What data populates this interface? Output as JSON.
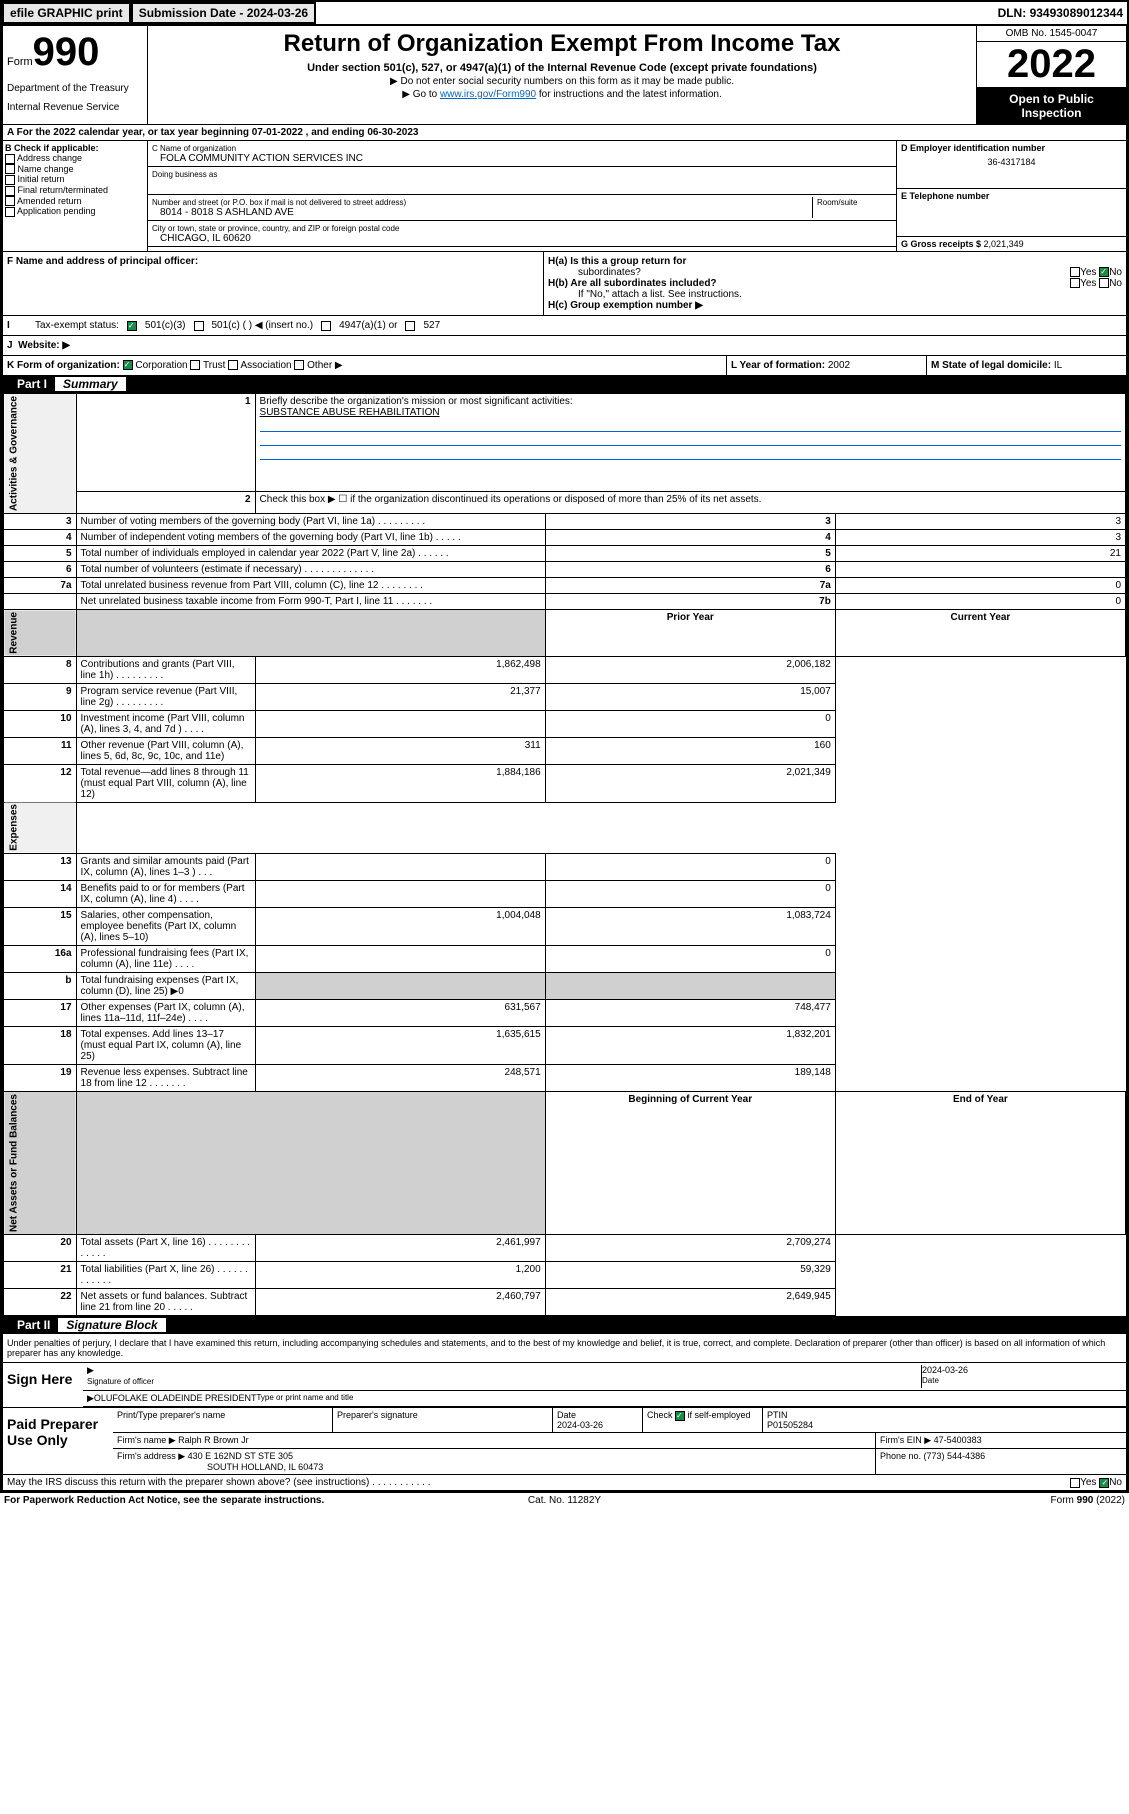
{
  "topbar": {
    "efile": "efile GRAPHIC print",
    "subdate_label": "Submission Date - ",
    "subdate": "2024-03-26",
    "dln_label": "DLN: ",
    "dln": "93493089012344"
  },
  "header": {
    "form_prefix": "Form",
    "form_num": "990",
    "dept": "Department of the Treasury",
    "irs": "Internal Revenue Service",
    "title": "Return of Organization Exempt From Income Tax",
    "subtitle": "Under section 501(c), 527, or 4947(a)(1) of the Internal Revenue Code (except private foundations)",
    "instr1": "▶ Do not enter social security numbers on this form as it may be made public.",
    "instr2_pre": "▶ Go to ",
    "instr2_link": "www.irs.gov/Form990",
    "instr2_post": " for instructions and the latest information.",
    "omb": "OMB No. 1545-0047",
    "year": "2022",
    "open1": "Open to Public",
    "open2": "Inspection"
  },
  "section_a": "A For the 2022 calendar year, or tax year beginning 07-01-2022    , and ending 06-30-2023",
  "b": {
    "label": "B Check if applicable:",
    "opts": [
      "Address change",
      "Name change",
      "Initial return",
      "Final return/terminated",
      "Amended return",
      "Application pending"
    ]
  },
  "c": {
    "name_label": "C Name of organization",
    "name": "FOLA COMMUNITY ACTION SERVICES INC",
    "dba_label": "Doing business as",
    "dba": "",
    "addr_label": "Number and street (or P.O. box if mail is not delivered to street address)",
    "room_label": "Room/suite",
    "addr": "8014 - 8018 S ASHLAND AVE",
    "city_label": "City or town, state or province, country, and ZIP or foreign postal code",
    "city": "CHICAGO, IL  60620"
  },
  "d": {
    "label": "D Employer identification number",
    "val": "36-4317184"
  },
  "e": {
    "label": "E Telephone number",
    "val": ""
  },
  "g": {
    "label": "G Gross receipts $ ",
    "val": "2,021,349"
  },
  "f": {
    "label": "F  Name and address of principal officer:"
  },
  "h": {
    "a_label": "H(a)  Is this a group return for",
    "a_sub": "subordinates?",
    "b_label": "H(b)  Are all subordinates included?",
    "b_note": "If \"No,\" attach a list. See instructions.",
    "c_label": "H(c)  Group exemption number ▶",
    "yes": "Yes",
    "no": "No"
  },
  "i": {
    "label": "Tax-exempt status:",
    "opts": [
      "501(c)(3)",
      "501(c) (  ) ◀ (insert no.)",
      "4947(a)(1) or",
      "527"
    ]
  },
  "j": {
    "label": "Website: ▶"
  },
  "k": {
    "label": "K Form of organization:",
    "opts": [
      "Corporation",
      "Trust",
      "Association",
      "Other ▶"
    ]
  },
  "l": {
    "label": "L Year of formation: ",
    "val": "2002"
  },
  "m": {
    "label": "M State of legal domicile: ",
    "val": "IL"
  },
  "part1": {
    "num": "Part I",
    "title": "Summary"
  },
  "summary": {
    "q1": "Briefly describe the organization's mission or most significant activities:",
    "q1_ans": "SUBSTANCE ABUSE REHABILITATION",
    "q2": "Check this box ▶ ☐  if the organization discontinued its operations or disposed of more than 25% of its net assets.",
    "rows_gov": [
      {
        "n": "3",
        "t": "Number of voting members of the governing body (Part VI, line 1a)  .   .   .   .   .   .   .   .   .",
        "c": "3",
        "v": "3"
      },
      {
        "n": "4",
        "t": "Number of independent voting members of the governing body (Part VI, line 1b)   .   .   .   .   .",
        "c": "4",
        "v": "3"
      },
      {
        "n": "5",
        "t": "Total number of individuals employed in calendar year 2022 (Part V, line 2a)   .   .   .   .   .   .",
        "c": "5",
        "v": "21"
      },
      {
        "n": "6",
        "t": "Total number of volunteers (estimate if necessary)   .   .   .   .   .   .   .   .   .   .   .   .   .",
        "c": "6",
        "v": ""
      },
      {
        "n": "7a",
        "t": "Total unrelated business revenue from Part VIII, column (C), line 12   .   .   .   .   .   .   .   .",
        "c": "7a",
        "v": "0"
      },
      {
        "n": "",
        "t": "Net unrelated business taxable income from Form 990-T, Part I, line 11   .   .   .   .   .   .   .",
        "c": "7b",
        "v": "0"
      }
    ],
    "col_prior": "Prior Year",
    "col_curr": "Current Year",
    "rows_rev": [
      {
        "n": "8",
        "t": "Contributions and grants (Part VIII, line 1h)   .   .   .   .   .   .   .   .   .",
        "p": "1,862,498",
        "c": "2,006,182"
      },
      {
        "n": "9",
        "t": "Program service revenue (Part VIII, line 2g)   .   .   .   .   .   .   .   .   .",
        "p": "21,377",
        "c": "15,007"
      },
      {
        "n": "10",
        "t": "Investment income (Part VIII, column (A), lines 3, 4, and 7d )   .   .   .   .",
        "p": "",
        "c": "0"
      },
      {
        "n": "11",
        "t": "Other revenue (Part VIII, column (A), lines 5, 6d, 8c, 9c, 10c, and 11e)",
        "p": "311",
        "c": "160"
      },
      {
        "n": "12",
        "t": "Total revenue—add lines 8 through 11 (must equal Part VIII, column (A), line 12)",
        "p": "1,884,186",
        "c": "2,021,349"
      }
    ],
    "rows_exp": [
      {
        "n": "13",
        "t": "Grants and similar amounts paid (Part IX, column (A), lines 1–3 )   .   .   .",
        "p": "",
        "c": "0"
      },
      {
        "n": "14",
        "t": "Benefits paid to or for members (Part IX, column (A), line 4)   .   .   .   .",
        "p": "",
        "c": "0"
      },
      {
        "n": "15",
        "t": "Salaries, other compensation, employee benefits (Part IX, column (A), lines 5–10)",
        "p": "1,004,048",
        "c": "1,083,724"
      },
      {
        "n": "16a",
        "t": "Professional fundraising fees (Part IX, column (A), line 11e)   .   .   .   .",
        "p": "",
        "c": "0"
      },
      {
        "n": "b",
        "t": "Total fundraising expenses (Part IX, column (D), line 25) ▶0",
        "p": "shaded",
        "c": "shaded"
      },
      {
        "n": "17",
        "t": "Other expenses (Part IX, column (A), lines 11a–11d, 11f–24e)   .   .   .   .",
        "p": "631,567",
        "c": "748,477"
      },
      {
        "n": "18",
        "t": "Total expenses. Add lines 13–17 (must equal Part IX, column (A), line 25)",
        "p": "1,635,615",
        "c": "1,832,201"
      },
      {
        "n": "19",
        "t": "Revenue less expenses. Subtract line 18 from line 12   .   .   .   .   .   .   .",
        "p": "248,571",
        "c": "189,148"
      }
    ],
    "col_beg": "Beginning of Current Year",
    "col_end": "End of Year",
    "rows_net": [
      {
        "n": "20",
        "t": "Total assets (Part X, line 16)   .   .   .   .   .   .   .   .   .   .   .   .   .",
        "p": "2,461,997",
        "c": "2,709,274"
      },
      {
        "n": "21",
        "t": "Total liabilities (Part X, line 26)   .   .   .   .   .   .   .   .   .   .   .   .",
        "p": "1,200",
        "c": "59,329"
      },
      {
        "n": "22",
        "t": "Net assets or fund balances. Subtract line 21 from line 20   .   .   .   .   .",
        "p": "2,460,797",
        "c": "2,649,945"
      }
    ],
    "vlabels": {
      "gov": "Activities & Governance",
      "rev": "Revenue",
      "exp": "Expenses",
      "net": "Net Assets or Fund Balances"
    }
  },
  "part2": {
    "num": "Part II",
    "title": "Signature Block"
  },
  "sig": {
    "decl": "Under penalties of perjury, I declare that I have examined this return, including accompanying schedules and statements, and to the best of my knowledge and belief, it is true, correct, and complete. Declaration of preparer (other than officer) is based on all information of which preparer has any knowledge.",
    "sign_here": "Sign Here",
    "sig_officer": "Signature of officer",
    "date_label": "Date",
    "date": "2024-03-26",
    "name": "OLUFOLAKE OLADEINDE  PRESIDENT",
    "name_label": "Type or print name and title"
  },
  "paid": {
    "label": "Paid Preparer Use Only",
    "prep_name_label": "Print/Type preparer's name",
    "prep_sig_label": "Preparer's signature",
    "prep_date_label": "Date",
    "prep_date": "2024-03-26",
    "check_label": "Check ☑ if self-employed",
    "ptin_label": "PTIN",
    "ptin": "P01505284",
    "firm_name_label": "Firm's name      ▶ ",
    "firm_name": "Ralph R Brown Jr",
    "firm_ein_label": "Firm's EIN ▶ ",
    "firm_ein": "47-5400383",
    "firm_addr_label": "Firm's address ▶ ",
    "firm_addr1": "430 E 162ND ST STE 305",
    "firm_addr2": "SOUTH HOLLAND, IL  60473",
    "phone_label": "Phone no. ",
    "phone": "(773) 544-4386"
  },
  "footer": {
    "discuss": "May the IRS discuss this return with the preparer shown above? (see instructions)   .   .   .   .   .   .   .   .   .   .   .",
    "yes": "Yes",
    "no": "No",
    "paperwork": "For Paperwork Reduction Act Notice, see the separate instructions.",
    "cat": "Cat. No. 11282Y",
    "form": "Form 990 (2022)"
  }
}
